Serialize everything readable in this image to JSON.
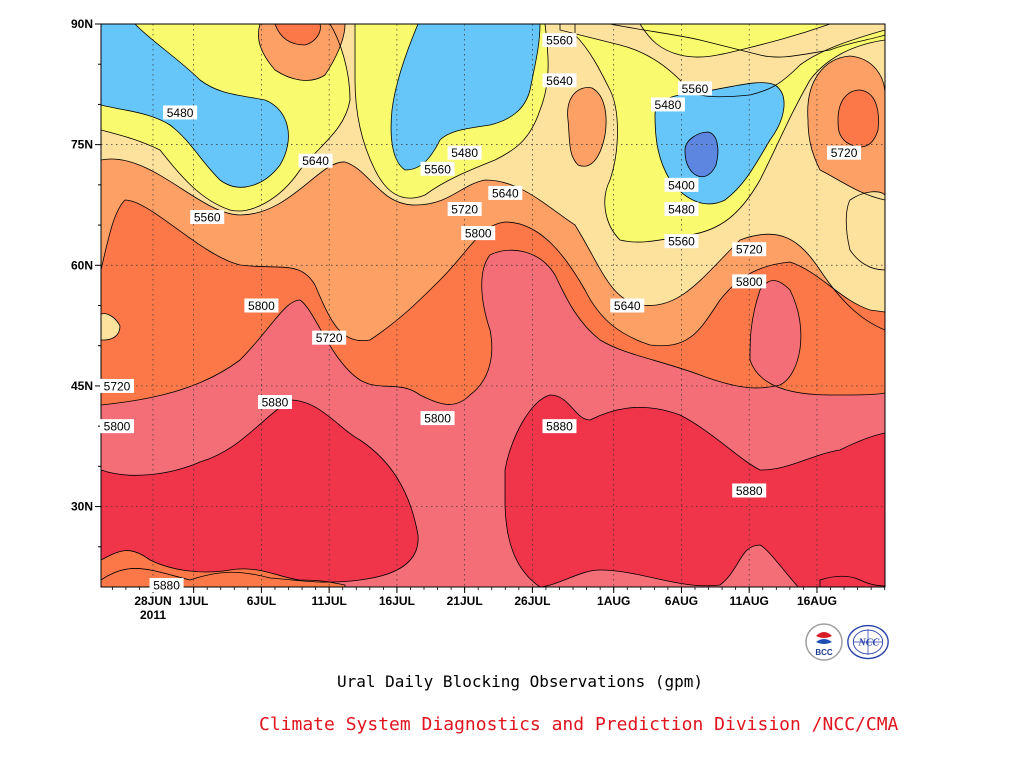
{
  "chart_data": {
    "type": "contour-filled",
    "title": "Ural Daily Blocking Observations (gpm)",
    "xlabel": "",
    "ylabel": "",
    "x_ticks": [
      "28JUN",
      "1JUL",
      "6JUL",
      "11JUL",
      "16JUL",
      "21JUL",
      "26JUL",
      "1AUG",
      "6AUG",
      "11AUG",
      "16AUG"
    ],
    "x_year_label": "2011",
    "y_ticks": [
      "30N",
      "45N",
      "60N",
      "75N",
      "90N"
    ],
    "y_range": [
      20,
      90
    ],
    "contour_levels": [
      5400,
      5480,
      5560,
      5640,
      5720,
      5800,
      5880
    ],
    "contour_colors": {
      "below_5400": "#5c86e0",
      "5400_5480": "#66c6fa",
      "5480_5560": "#fafa6e",
      "5560_5640": "#fde29e",
      "5640_5720": "#fda066",
      "5720_5800": "#fc7848",
      "5800_5880": "#f46e78",
      "above_5880": "#f0344a"
    },
    "contour_labels": [
      {
        "text": "5480",
        "date": "2011-06-30",
        "lat": 79
      },
      {
        "text": "5480",
        "date": "2011-07-21",
        "lat": 74
      },
      {
        "text": "5480",
        "date": "2011-08-05",
        "lat": 80
      },
      {
        "text": "5480",
        "date": "2011-08-06",
        "lat": 67
      },
      {
        "text": "5400",
        "date": "2011-08-06",
        "lat": 70
      },
      {
        "text": "5560",
        "date": "2011-07-02",
        "lat": 66
      },
      {
        "text": "5560",
        "date": "2011-07-19",
        "lat": 72
      },
      {
        "text": "5560",
        "date": "2011-07-28",
        "lat": 88
      },
      {
        "text": "5560",
        "date": "2011-08-07",
        "lat": 82
      },
      {
        "text": "5560",
        "date": "2011-08-06",
        "lat": 63
      },
      {
        "text": "5640",
        "date": "2011-07-10",
        "lat": 73
      },
      {
        "text": "5640",
        "date": "2011-07-24",
        "lat": 69
      },
      {
        "text": "5640",
        "date": "2011-07-28",
        "lat": 83
      },
      {
        "text": "5640",
        "date": "2011-08-02",
        "lat": 55
      },
      {
        "text": "5720",
        "date": "2011-07-11",
        "lat": 51
      },
      {
        "text": "5720",
        "date": "2011-07-21",
        "lat": 67
      },
      {
        "text": "5720",
        "date": "2011-06-23",
        "lat": 45
      },
      {
        "text": "5720",
        "date": "2011-08-11",
        "lat": 62
      },
      {
        "text": "5720",
        "date": "2011-08-18",
        "lat": 74
      },
      {
        "text": "5800",
        "date": "2011-07-06",
        "lat": 55
      },
      {
        "text": "5800",
        "date": "2011-07-22",
        "lat": 64
      },
      {
        "text": "5800",
        "date": "2011-06-25",
        "lat": 40
      },
      {
        "text": "5800",
        "date": "2011-07-19",
        "lat": 41
      },
      {
        "text": "5800",
        "date": "2011-08-11",
        "lat": 58
      },
      {
        "text": "5880",
        "date": "2011-07-07",
        "lat": 43
      },
      {
        "text": "5880",
        "date": "2011-07-28",
        "lat": 40
      },
      {
        "text": "5880",
        "date": "2011-08-11",
        "lat": 32
      },
      {
        "text": "5880",
        "date": "2011-06-29",
        "lat": 20
      }
    ],
    "grid": true
  },
  "footer": {
    "credit": "Climate System Diagnostics and Prediction Division /NCC/CMA"
  },
  "logos": {
    "bcc_text": "BCC",
    "ncc_text": "NCC"
  }
}
